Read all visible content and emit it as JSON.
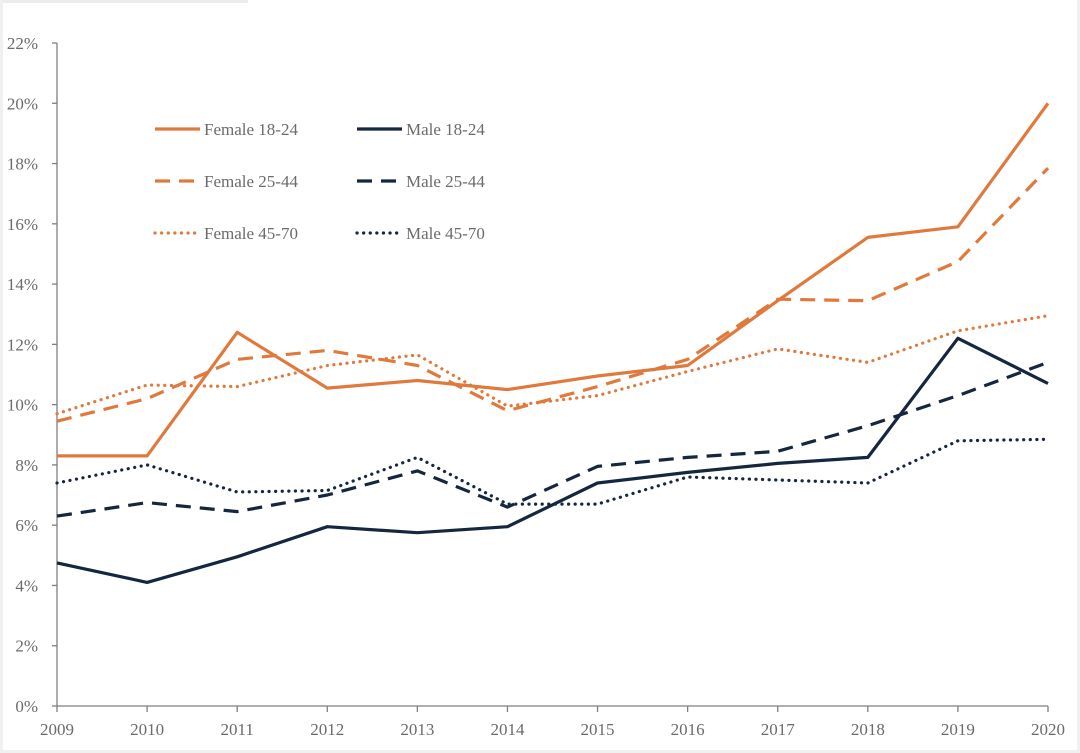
{
  "chart_data": {
    "type": "line",
    "title": "",
    "xlabel": "",
    "ylabel": "",
    "x": [
      "2009",
      "2010",
      "2011",
      "2012",
      "2013",
      "2014",
      "2015",
      "2016",
      "2017",
      "2018",
      "2019",
      "2020"
    ],
    "ylim": [
      0,
      22
    ],
    "yticks": [
      0,
      2,
      4,
      6,
      8,
      10,
      12,
      14,
      16,
      18,
      20,
      22
    ],
    "ytick_labels": [
      "0%",
      "2%",
      "4%",
      "6%",
      "8%",
      "10%",
      "12%",
      "14%",
      "16%",
      "18%",
      "20%",
      "22%"
    ],
    "grid": false,
    "legend_position": "top-left",
    "colors": {
      "female": "#E07A3C",
      "male": "#15273F",
      "axis": "#7f7f7f",
      "text": "#6b6b6b"
    },
    "series": [
      {
        "name": "Female 18-24",
        "group": "female",
        "style": "solid",
        "values": [
          8.3,
          8.3,
          12.4,
          10.55,
          10.8,
          10.5,
          10.95,
          11.3,
          13.45,
          15.55,
          15.9,
          20.0
        ]
      },
      {
        "name": "Male 18-24",
        "group": "male",
        "style": "solid",
        "values": [
          4.75,
          4.1,
          4.95,
          5.95,
          5.75,
          5.95,
          7.4,
          7.75,
          8.05,
          8.25,
          12.2,
          10.7
        ]
      },
      {
        "name": "Female 25-44",
        "group": "female",
        "style": "dashed",
        "values": [
          9.45,
          10.2,
          11.5,
          11.8,
          11.3,
          9.8,
          10.6,
          11.5,
          13.5,
          13.45,
          14.75,
          17.85
        ]
      },
      {
        "name": "Male 25-44",
        "group": "male",
        "style": "dashed",
        "values": [
          6.3,
          6.75,
          6.45,
          7.0,
          7.8,
          6.6,
          7.95,
          8.25,
          8.45,
          9.3,
          10.3,
          11.4
        ]
      },
      {
        "name": "Female 45-70",
        "group": "female",
        "style": "dotted",
        "values": [
          9.7,
          10.65,
          10.6,
          11.3,
          11.65,
          9.95,
          10.3,
          11.1,
          11.85,
          11.4,
          12.45,
          12.95
        ]
      },
      {
        "name": "Male 45-70",
        "group": "male",
        "style": "dotted",
        "values": [
          7.4,
          8.0,
          7.1,
          7.15,
          8.25,
          6.7,
          6.7,
          7.6,
          7.5,
          7.4,
          8.8,
          8.85
        ]
      }
    ]
  }
}
